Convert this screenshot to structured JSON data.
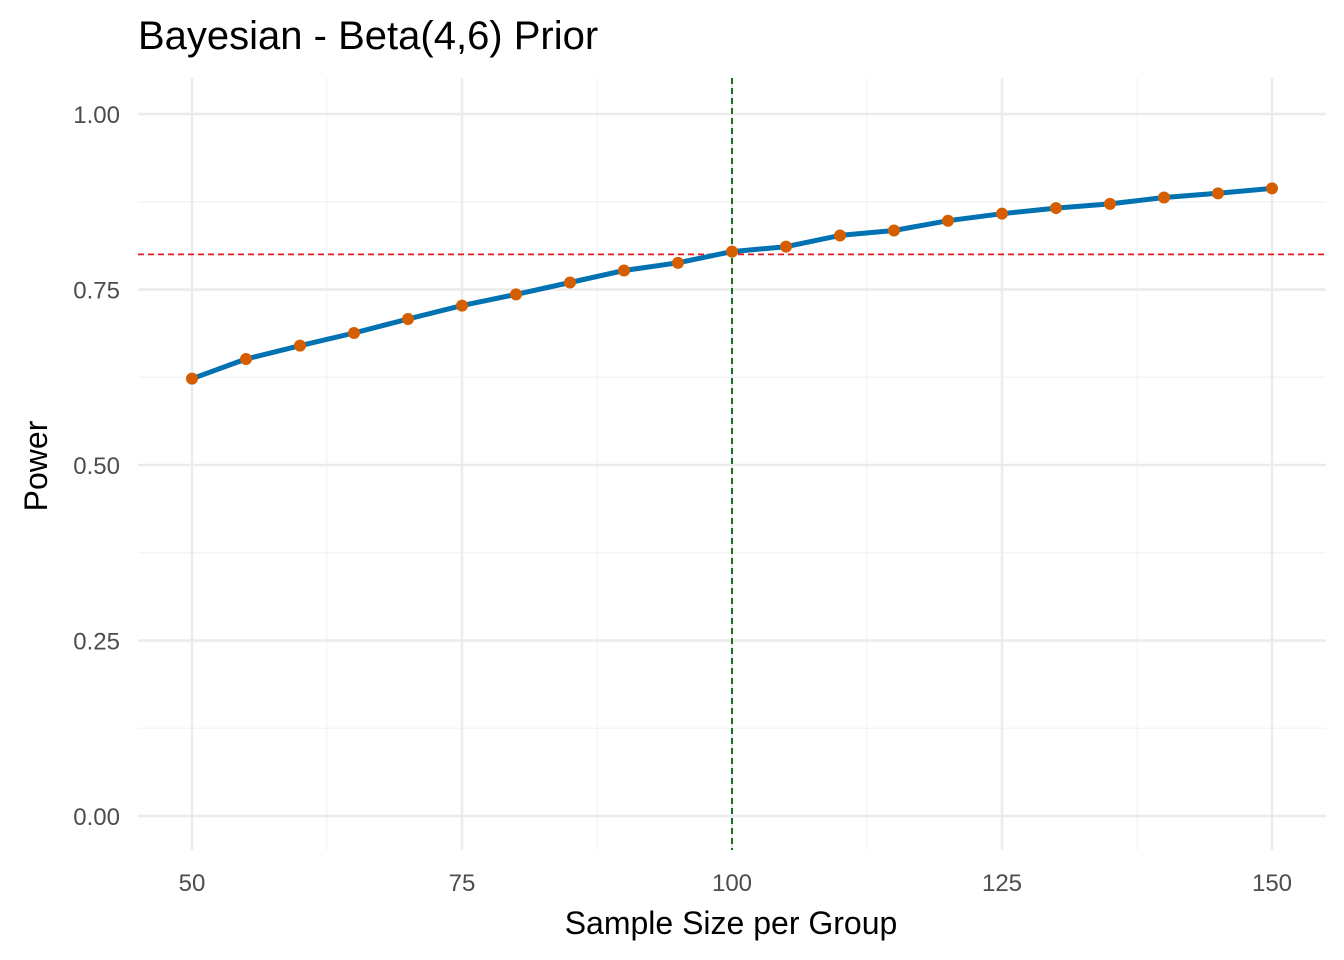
{
  "chart_data": {
    "type": "line",
    "title": "Bayesian - Beta(4,6) Prior",
    "xlabel": "Sample Size per Group",
    "ylabel": "Power",
    "xlim": [
      50,
      150
    ],
    "ylim": [
      0,
      1
    ],
    "x_ticks": [
      50,
      75,
      100,
      125,
      150
    ],
    "x_tick_labels": [
      "50",
      "75",
      "100",
      "125",
      "150"
    ],
    "y_ticks": [
      0,
      0.25,
      0.5,
      0.75,
      1.0
    ],
    "y_tick_labels": [
      "0.00",
      "0.25",
      "0.50",
      "0.75",
      "1.00"
    ],
    "grid": true,
    "x": [
      50,
      55,
      60,
      65,
      70,
      75,
      80,
      85,
      90,
      95,
      100,
      105,
      110,
      115,
      120,
      125,
      130,
      135,
      140,
      145,
      150
    ],
    "series": [
      {
        "values": [
          0.623,
          0.651,
          0.67,
          0.688,
          0.708,
          0.727,
          0.743,
          0.76,
          0.777,
          0.788,
          0.804,
          0.811,
          0.827,
          0.834,
          0.848,
          0.858,
          0.866,
          0.872,
          0.881,
          0.887,
          0.894
        ],
        "line_color": "#0072B2",
        "point_color": "#D55E00"
      }
    ],
    "reference_lines": [
      {
        "orientation": "horizontal",
        "value": 0.8,
        "color": "#E41A1C",
        "style": "dashed"
      },
      {
        "orientation": "vertical",
        "value": 100,
        "color": "#006400",
        "style": "dashed"
      }
    ]
  }
}
